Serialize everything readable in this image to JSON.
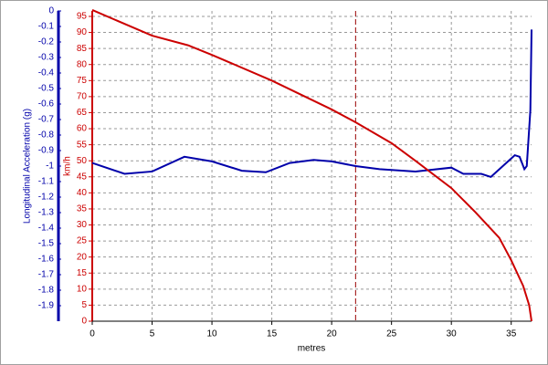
{
  "chart_data": {
    "type": "line",
    "xlabel": "metres",
    "ylabel": "Longitudinal Acceleration (g)",
    "y2label": "km/h",
    "xlim": [
      0,
      36.7
    ],
    "xticks": [
      0,
      5,
      10,
      15,
      20,
      25,
      30,
      35
    ],
    "ylim": [
      -2,
      0
    ],
    "yticks": [
      0,
      -0.1,
      -0.2,
      -0.3,
      -0.4,
      -0.5,
      -0.6,
      -0.7,
      -0.8,
      -0.9,
      -1,
      -1.1,
      -1.2,
      -1.3,
      -1.4,
      -1.5,
      -1.6,
      -1.7,
      -1.8,
      -1.9
    ],
    "y2lim": [
      0,
      96.7
    ],
    "y2ticks": [
      0,
      5,
      10,
      15,
      20,
      25,
      30,
      35,
      40,
      45,
      50,
      55,
      60,
      65,
      70,
      75,
      80,
      85,
      90,
      95
    ],
    "grid": true,
    "cursor": 22,
    "series": [
      {
        "name": "Longitudinal Acceleration",
        "color": "#0000aa",
        "axis": "y",
        "x": [
          0,
          2.7,
          5,
          7.7,
          10,
          12.5,
          14.5,
          16.5,
          18.5,
          20,
          22,
          24,
          27,
          30,
          31,
          32.5,
          33.3,
          34.3,
          35.3,
          35.7,
          36.1,
          36.3,
          36.6,
          36.7
        ],
        "values": [
          -0.98,
          -1.05,
          -1.035,
          -0.94,
          -0.97,
          -1.03,
          -1.04,
          -0.98,
          -0.96,
          -0.97,
          -1.0,
          -1.02,
          -1.035,
          -1.01,
          -1.05,
          -1.05,
          -1.07,
          -1.0,
          -0.93,
          -0.94,
          -1.02,
          -1.0,
          -0.64,
          -0.12
        ]
      },
      {
        "name": "Speed",
        "color": "#cc0000",
        "axis": "y2",
        "x": [
          0,
          5,
          8,
          10,
          15,
          20,
          22,
          25,
          27,
          30,
          32,
          34,
          35,
          36,
          36.5,
          36.7
        ],
        "values": [
          97,
          89,
          86,
          83,
          75,
          66,
          62,
          55.5,
          50,
          41.5,
          34,
          26,
          19,
          11,
          5,
          0
        ]
      }
    ]
  }
}
